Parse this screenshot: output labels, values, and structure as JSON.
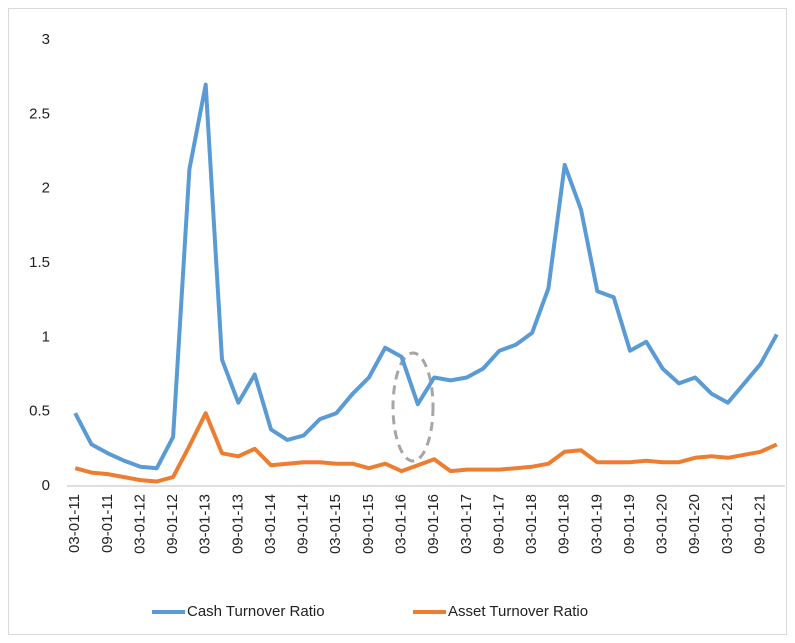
{
  "chart_data": {
    "type": "line",
    "categories": [
      "03-01-11",
      null,
      "09-01-11",
      null,
      "03-01-12",
      null,
      "09-01-12",
      null,
      "03-01-13",
      null,
      "09-01-13",
      null,
      "03-01-14",
      null,
      "09-01-14",
      null,
      "03-01-15",
      null,
      "09-01-15",
      null,
      "03-01-16",
      null,
      "09-01-16",
      null,
      "03-01-17",
      null,
      "09-01-17",
      null,
      "03-01-18",
      null,
      "09-01-18",
      null,
      "03-01-19",
      null,
      "09-01-19",
      null,
      "03-01-20",
      null,
      "09-01-20",
      null,
      "03-01-21",
      null,
      "09-01-21",
      null
    ],
    "series": [
      {
        "name": "Cash Turnover Ratio",
        "color": "#5b9bd5",
        "values": [
          0.49,
          0.28,
          0.22,
          0.17,
          0.13,
          0.12,
          0.33,
          2.13,
          2.7,
          0.85,
          0.56,
          0.75,
          0.38,
          0.31,
          0.34,
          0.45,
          0.49,
          0.62,
          0.73,
          0.93,
          0.87,
          0.55,
          0.73,
          0.71,
          0.73,
          0.79,
          0.91,
          0.95,
          1.03,
          1.33,
          2.16,
          1.86,
          1.31,
          1.27,
          0.91,
          0.97,
          0.79,
          0.69,
          0.73,
          0.62,
          0.56,
          0.69,
          0.82,
          1.02
        ]
      },
      {
        "name": "Asset Turnover Ratio",
        "color": "#ed7d31",
        "values": [
          0.12,
          0.09,
          0.08,
          0.06,
          0.04,
          0.03,
          0.06,
          0.27,
          0.49,
          0.22,
          0.2,
          0.25,
          0.14,
          0.15,
          0.16,
          0.16,
          0.15,
          0.15,
          0.12,
          0.15,
          0.1,
          0.14,
          0.18,
          0.1,
          0.11,
          0.11,
          0.11,
          0.12,
          0.13,
          0.15,
          0.23,
          0.24,
          0.16,
          0.16,
          0.16,
          0.17,
          0.16,
          0.16,
          0.19,
          0.2,
          0.19,
          0.21,
          0.23,
          0.28
        ]
      }
    ],
    "ylim": [
      0,
      3
    ],
    "yticks": [
      0,
      0.5,
      1,
      1.5,
      2,
      2.5,
      3
    ],
    "grid": false,
    "legend": "bottom"
  }
}
